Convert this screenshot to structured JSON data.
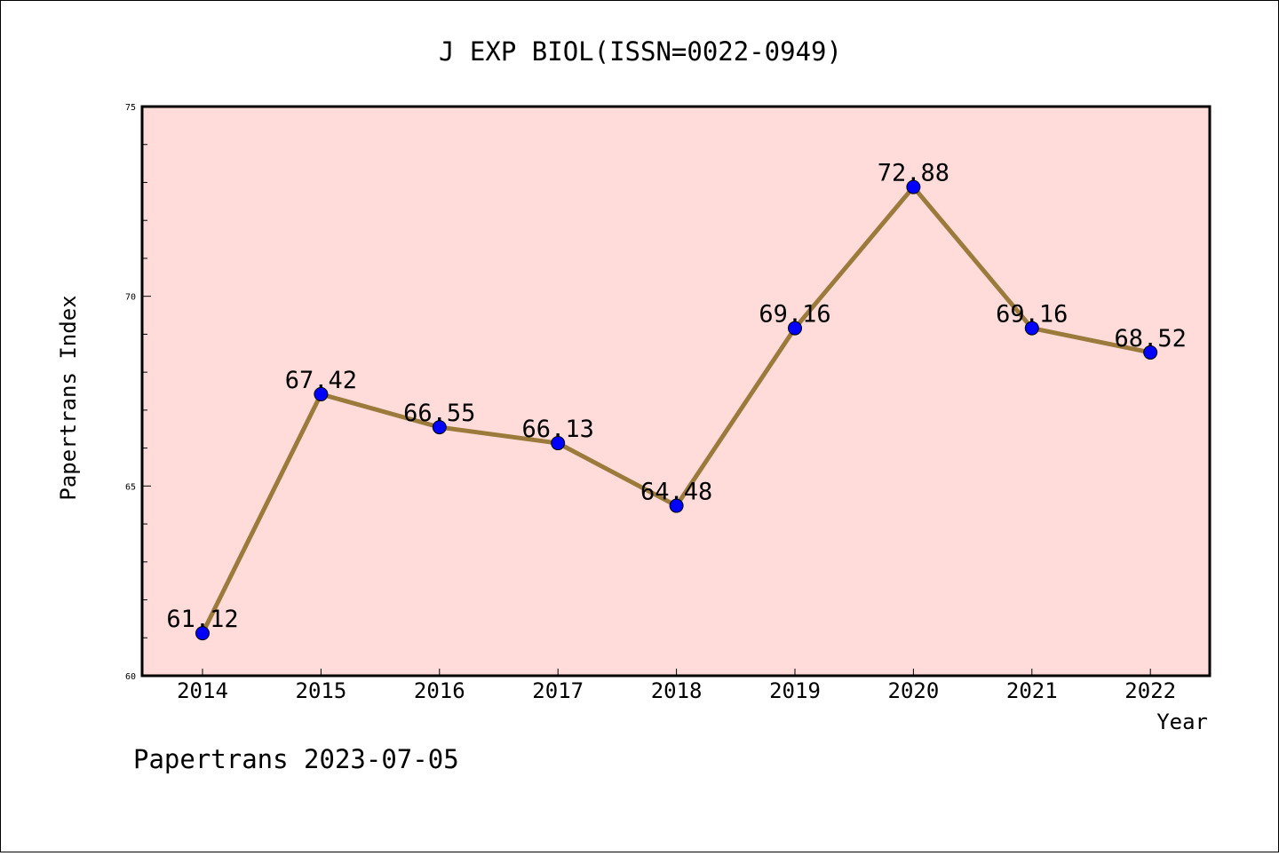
{
  "chart_data": {
    "type": "line",
    "title": "J EXP BIOL(ISSN=0022-0949)",
    "xlabel": "Year",
    "ylabel": "Papertrans Index",
    "footer": "Papertrans 2023-07-05",
    "categories": [
      "2014",
      "2015",
      "2016",
      "2017",
      "2018",
      "2019",
      "2020",
      "2021",
      "2022"
    ],
    "values": [
      61.12,
      67.42,
      66.55,
      66.13,
      64.48,
      69.16,
      72.88,
      69.16,
      68.52
    ],
    "value_labels": [
      "61.12",
      "67.42",
      "66.55",
      "66.13",
      "64.48",
      "69.16",
      "72.88",
      "69.16",
      "68.52"
    ],
    "ylim": [
      60,
      75
    ],
    "yticks_major": [
      "60",
      "65",
      "70",
      "75"
    ],
    "yminor_step": 1,
    "grid": false,
    "colors": {
      "plot_background": "#ffdcd9",
      "line": "#9b7a3c",
      "marker": "#0000ff"
    }
  }
}
